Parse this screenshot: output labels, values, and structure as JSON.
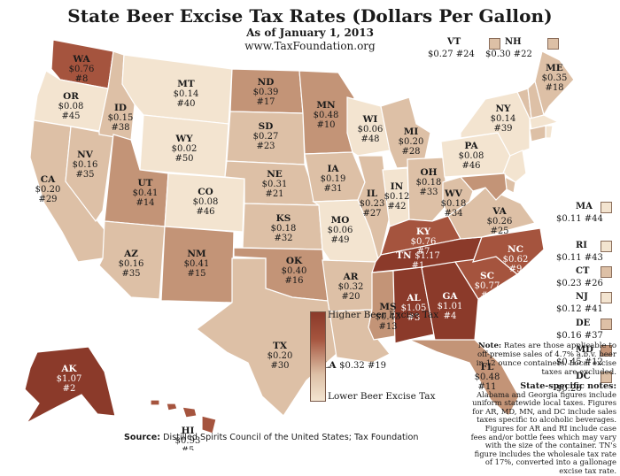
{
  "title": "State Beer Excise Tax Rates (Dollars Per Gallon)",
  "subtitle": "As of January 1, 2013",
  "website": "www.TaxFoundation.org",
  "legend": {
    "high": "Higher Beer Excise Tax",
    "low": "Lower Beer Excise Tax"
  },
  "states": [
    {
      "abbr": "WA",
      "rate": "$0.76",
      "rank": "#8"
    },
    {
      "abbr": "OR",
      "rate": "$0.08",
      "rank": "#45"
    },
    {
      "abbr": "CA",
      "rate": "$0.20",
      "rank": "#29"
    },
    {
      "abbr": "NV",
      "rate": "$0.16",
      "rank": "#35"
    },
    {
      "abbr": "ID",
      "rate": "$0.15",
      "rank": "#38"
    },
    {
      "abbr": "MT",
      "rate": "$0.14",
      "rank": "#40"
    },
    {
      "abbr": "WY",
      "rate": "$0.02",
      "rank": "#50"
    },
    {
      "abbr": "UT",
      "rate": "$0.41",
      "rank": "#14"
    },
    {
      "abbr": "AZ",
      "rate": "$0.16",
      "rank": "#35"
    },
    {
      "abbr": "CO",
      "rate": "$0.08",
      "rank": "#46"
    },
    {
      "abbr": "NM",
      "rate": "$0.41",
      "rank": "#15"
    },
    {
      "abbr": "ND",
      "rate": "$0.39",
      "rank": "#17"
    },
    {
      "abbr": "SD",
      "rate": "$0.27",
      "rank": "#23"
    },
    {
      "abbr": "NE",
      "rate": "$0.31",
      "rank": "#21"
    },
    {
      "abbr": "KS",
      "rate": "$0.18",
      "rank": "#32"
    },
    {
      "abbr": "OK",
      "rate": "$0.40",
      "rank": "#16"
    },
    {
      "abbr": "TX",
      "rate": "$0.20",
      "rank": "#30"
    },
    {
      "abbr": "MN",
      "rate": "$0.48",
      "rank": "#10"
    },
    {
      "abbr": "IA",
      "rate": "$0.19",
      "rank": "#31"
    },
    {
      "abbr": "MO",
      "rate": "$0.06",
      "rank": "#49"
    },
    {
      "abbr": "AR",
      "rate": "$0.32",
      "rank": "#20"
    },
    {
      "abbr": "LA",
      "rate": "$0.32",
      "rank": "#19"
    },
    {
      "abbr": "WI",
      "rate": "$0.06",
      "rank": "#48"
    },
    {
      "abbr": "IL",
      "rate": "$0.23",
      "rank": "#27"
    },
    {
      "abbr": "MI",
      "rate": "$0.20",
      "rank": "#28"
    },
    {
      "abbr": "IN",
      "rate": "$0.12",
      "rank": "#42"
    },
    {
      "abbr": "OH",
      "rate": "$0.18",
      "rank": "#33"
    },
    {
      "abbr": "KY",
      "rate": "$0.76",
      "rank": "#7"
    },
    {
      "abbr": "TN",
      "rate": "$1.17",
      "rank": "#1"
    },
    {
      "abbr": "MS",
      "rate": "$0.43",
      "rank": "#13"
    },
    {
      "abbr": "AL",
      "rate": "$1.05",
      "rank": "#3"
    },
    {
      "abbr": "GA",
      "rate": "$1.01",
      "rank": "#4"
    },
    {
      "abbr": "FL",
      "rate": "$0.48",
      "rank": "#11"
    },
    {
      "abbr": "SC",
      "rate": "$0.77",
      "rank": "#6"
    },
    {
      "abbr": "NC",
      "rate": "$0.62",
      "rank": "#9"
    },
    {
      "abbr": "VA",
      "rate": "$0.26",
      "rank": "#25"
    },
    {
      "abbr": "WV",
      "rate": "$0.18",
      "rank": "#34"
    },
    {
      "abbr": "PA",
      "rate": "$0.08",
      "rank": "#46"
    },
    {
      "abbr": "NY",
      "rate": "$0.14",
      "rank": "#39"
    },
    {
      "abbr": "ME",
      "rate": "$0.35",
      "rank": "#18"
    },
    {
      "abbr": "AK",
      "rate": "$1.07",
      "rank": "#2"
    },
    {
      "abbr": "HI",
      "rate": "$0.93",
      "rank": "#5"
    }
  ],
  "northeast": [
    {
      "abbr": "VT",
      "rate": "$0.27",
      "rank": "#24"
    },
    {
      "abbr": "NH",
      "rate": "$0.30",
      "rank": "#22"
    },
    {
      "abbr": "MA",
      "rate": "$0.11",
      "rank": "#44"
    },
    {
      "abbr": "RI",
      "rate": "$0.11",
      "rank": "#43"
    },
    {
      "abbr": "CT",
      "rate": "$0.23",
      "rank": "#26"
    },
    {
      "abbr": "NJ",
      "rate": "$0.12",
      "rank": "#41"
    },
    {
      "abbr": "DE",
      "rate": "$0.16",
      "rank": "#37"
    },
    {
      "abbr": "MD",
      "rate": "$0.45",
      "rank": "#12"
    },
    {
      "abbr": "DC",
      "rate": "$0.26",
      "rank": ""
    }
  ],
  "note": {
    "label": "Note:",
    "text": "Rates are those applicable to off-premise sales of 4.7% a.b.v. beer in 12 ounce containers. Local excise taxes are excluded."
  },
  "state_notes": {
    "heading": "State-specific notes:",
    "text": "Alabama and Georgia figures include uniform statewide local taxes. Figures for AR, MD, MN, and DC include sales taxes specific to alcoholic beverages. Figures for AR and RI include case fees and/or bottle fees which may vary with the size of the container. TN's figure includes the wholesale tax rate of 17%, converted into a gallonage excise tax rate."
  },
  "source": {
    "label": "Source:",
    "text": "Distilled Spirits Council of the United States; Tax Foundation"
  },
  "colors": {
    "darkest": "#8b3a2a",
    "dark": "#a5543e",
    "mid": "#c39477",
    "light": "#ddc0a6",
    "lightest": "#f3e4d0",
    "border": "#ffffff"
  }
}
